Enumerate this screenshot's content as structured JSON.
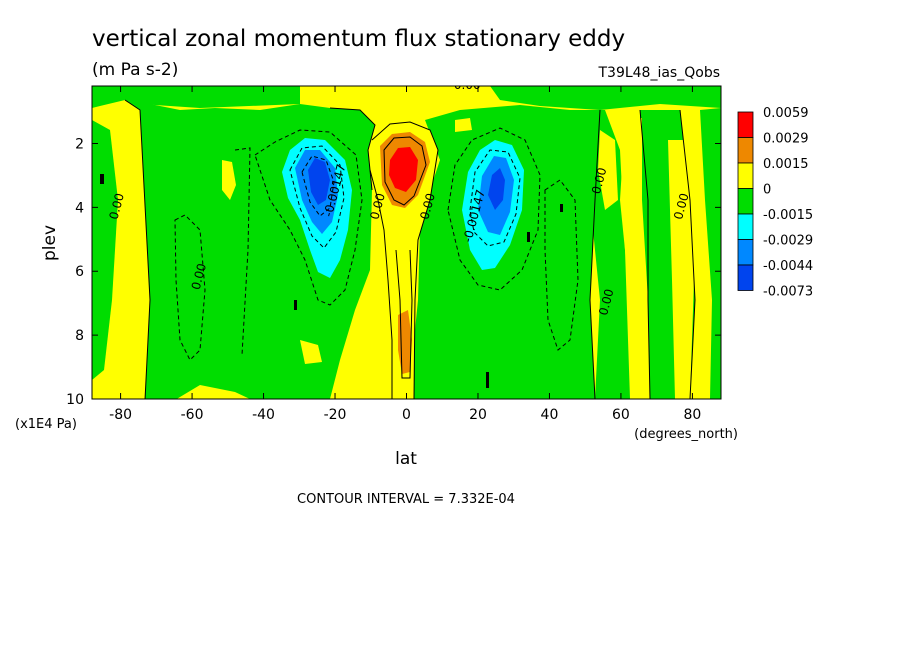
{
  "chart_data": {
    "type": "heatmap",
    "title": "vertical zonal momentum flux stationary eddy",
    "units": "(m Pa s-2)",
    "dataset": "T39L48_ias_Qobs",
    "xlabel": "lat",
    "xunits": "(degrees_north)",
    "ylabel": "plev",
    "yunits": "(x1E4 Pa)",
    "xlim": [
      -88,
      88
    ],
    "ylim": [
      10,
      0.2
    ],
    "y_inverted": true,
    "x_ticks": [
      -80,
      -60,
      -40,
      -20,
      0,
      20,
      40,
      60,
      80
    ],
    "y_ticks": [
      2,
      4,
      6,
      8,
      10
    ],
    "contour_interval_text": "CONTOUR INTERVAL = 7.332E-04",
    "grid": false,
    "legend": "right",
    "colorbar": {
      "levels": [
        "0.0059",
        "0.0029",
        "0.0015",
        "0",
        "-0.0015",
        "-0.0029",
        "-0.0044",
        "-0.0073"
      ],
      "colors": [
        "#ff0000",
        "#ee8800",
        "#ffff00",
        "#00dd00",
        "#00ffff",
        "#0088ff",
        "#0044ee"
      ],
      "color_labels": [
        "0.0059 to 0.0029",
        "0.0029 to 0.0015",
        "0.0015 to 0",
        "0 to -0.0015",
        "-0.0015 to -0.0029",
        "-0.0029 to -0.0044",
        "-0.0044 to -0.0073"
      ]
    },
    "features": [
      {
        "name": "equatorial positive maximum",
        "lat": -1,
        "plev": 2.8,
        "value": 0.0059
      },
      {
        "name": "southern negative minimum",
        "lat": -25,
        "plev": 3.2,
        "value": -0.0073
      },
      {
        "name": "northern negative minimum",
        "lat": 24,
        "plev": 3.3,
        "value": -0.0044
      }
    ],
    "contour_labels": [
      {
        "text": "0.00",
        "lat": 17,
        "plev": 0.3
      },
      {
        "text": "-0.00147",
        "lat": -19,
        "plev": 3.5
      },
      {
        "text": "-0.00147",
        "lat": 20,
        "plev": 4.3
      },
      {
        "text": "0.00",
        "lat": -7,
        "plev": 4.0
      },
      {
        "text": "0.00",
        "lat": 7,
        "plev": 4.0
      },
      {
        "text": "0.00",
        "lat": -80,
        "plev": 4.0
      },
      {
        "text": "0.00",
        "lat": -57,
        "plev": 6.2
      },
      {
        "text": "0.00",
        "lat": 55,
        "plev": 3.2
      },
      {
        "text": "0.00",
        "lat": 57,
        "plev": 7.0
      },
      {
        "text": "0.00",
        "lat": 78,
        "plev": 4.0
      }
    ]
  }
}
